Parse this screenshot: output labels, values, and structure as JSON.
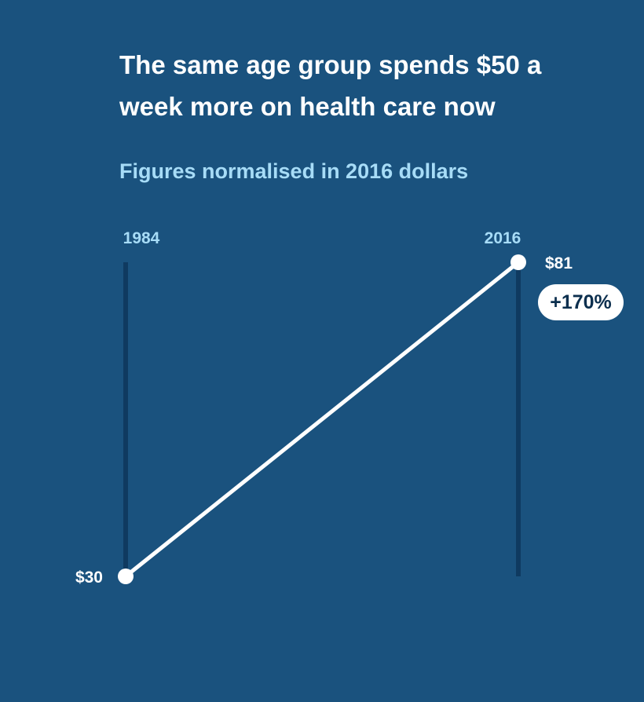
{
  "title": "The same age group spends $50 a week more on health care now",
  "subtitle": "Figures normalised in 2016 dollars",
  "colors": {
    "background": "#1a527e",
    "axis_line": "#0f3a60",
    "slope_line": "#ffffff",
    "year_label": "#a7dcf7",
    "badge_text": "#0c2f4e"
  },
  "chart_data": {
    "type": "line",
    "title": "The same age group spends $50 a week more on health care now",
    "subtitle": "Figures normalised in 2016 dollars",
    "x": [
      "1984",
      "2016"
    ],
    "series": [
      {
        "values": [
          30,
          81
        ]
      }
    ],
    "value_labels": [
      "$30",
      "$81"
    ],
    "change_label": "+170%",
    "ylim": [
      30,
      81
    ],
    "grid": false
  }
}
